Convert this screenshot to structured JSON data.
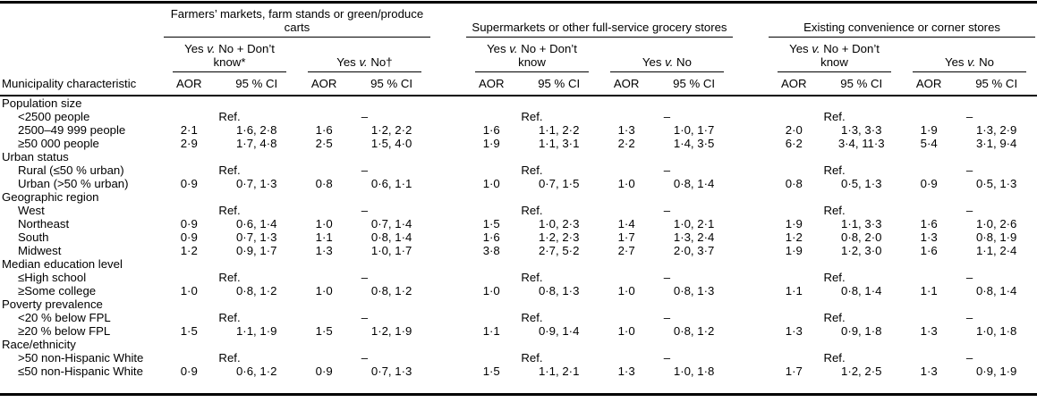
{
  "table": {
    "row_header_label": "Municipality characteristic",
    "aor_label": "AOR",
    "ci_label": "95 % CI",
    "ref_label": "Ref.",
    "no_estimate_marker": "–",
    "groups": [
      {
        "title": "Farmers’ markets, farm stands or green/produce carts",
        "comparisons": [
          {
            "pre": "Yes ",
            "v": "v.",
            "post": " No + Don’t know*"
          },
          {
            "pre": "Yes ",
            "v": "v.",
            "post": " No†"
          }
        ]
      },
      {
        "title": "Supermarkets or other full-service grocery stores",
        "comparisons": [
          {
            "pre": "Yes ",
            "v": "v.",
            "post": " No + Don’t know"
          },
          {
            "pre": "Yes ",
            "v": "v.",
            "post": " No"
          }
        ]
      },
      {
        "title": "Existing convenience or corner stores",
        "comparisons": [
          {
            "pre": "Yes ",
            "v": "v.",
            "post": " No + Don’t know"
          },
          {
            "pre": "Yes ",
            "v": "v.",
            "post": " No"
          }
        ]
      }
    ],
    "sections": [
      {
        "label": "Population size",
        "rows": [
          {
            "label": "<2500 people",
            "ref": true
          },
          {
            "label": "2500–49 999 people",
            "cells": [
              "2·1",
              "1·6, 2·8",
              "1·6",
              "1·2, 2·2",
              "1·6",
              "1·1, 2·2",
              "1·3",
              "1·0, 1·7",
              "2·0",
              "1·3, 3·3",
              "1·9",
              "1·3, 2·9"
            ]
          },
          {
            "label": "≥50 000 people",
            "cells": [
              "2·9",
              "1·7, 4·8",
              "2·5",
              "1·5, 4·0",
              "1·9",
              "1·1, 3·1",
              "2·2",
              "1·4, 3·5",
              "6·2",
              "3·4, 11·3",
              "5·4",
              "3·1, 9·4"
            ]
          }
        ]
      },
      {
        "label": "Urban status",
        "rows": [
          {
            "label": "Rural (≤50 % urban)",
            "ref": true
          },
          {
            "label": "Urban (>50 % urban)",
            "cells": [
              "0·9",
              "0·7, 1·3",
              "0·8",
              "0·6, 1·1",
              "1·0",
              "0·7, 1·5",
              "1·0",
              "0·8, 1·4",
              "0·8",
              "0·5, 1·3",
              "0·9",
              "0·5, 1·3"
            ]
          }
        ]
      },
      {
        "label": "Geographic region",
        "rows": [
          {
            "label": "West",
            "ref": true
          },
          {
            "label": "Northeast",
            "cells": [
              "0·9",
              "0·6, 1·4",
              "1·0",
              "0·7, 1·4",
              "1·5",
              "1·0, 2·3",
              "1·4",
              "1·0, 2·1",
              "1·9",
              "1·1, 3·3",
              "1·6",
              "1·0, 2·6"
            ]
          },
          {
            "label": "South",
            "cells": [
              "0·9",
              "0·7, 1·3",
              "1·1",
              "0·8, 1·4",
              "1·6",
              "1·2, 2·3",
              "1·7",
              "1·3, 2·4",
              "1·2",
              "0·8, 2·0",
              "1·3",
              "0·8, 1·9"
            ]
          },
          {
            "label": "Midwest",
            "cells": [
              "1·2",
              "0·9, 1·7",
              "1·3",
              "1·0, 1·7",
              "3·8",
              "2·7, 5·2",
              "2·7",
              "2·0, 3·7",
              "1·9",
              "1·2, 3·0",
              "1·6",
              "1·1, 2·4"
            ]
          }
        ]
      },
      {
        "label": "Median education level",
        "rows": [
          {
            "label": "≤High school",
            "ref": true
          },
          {
            "label": "≥Some college",
            "cells": [
              "1·0",
              "0·8, 1·2",
              "1·0",
              "0·8, 1·2",
              "1·0",
              "0·8, 1·3",
              "1·0",
              "0·8, 1·3",
              "1·1",
              "0·8, 1·4",
              "1·1",
              "0·8, 1·4"
            ]
          }
        ]
      },
      {
        "label": "Poverty prevalence",
        "rows": [
          {
            "label": "<20 % below FPL",
            "ref": true
          },
          {
            "label": "≥20 % below FPL",
            "cells": [
              "1·5",
              "1·1, 1·9",
              "1·5",
              "1·2, 1·9",
              "1·1",
              "0·9, 1·4",
              "1·0",
              "0·8, 1·2",
              "1·3",
              "0·9, 1·8",
              "1·3",
              "1·0, 1·8"
            ]
          }
        ]
      },
      {
        "label": "Race/ethnicity",
        "rows": [
          {
            "label": ">50 non-Hispanic White",
            "ref": true
          },
          {
            "label": "≤50 non-Hispanic White",
            "cells": [
              "0·9",
              "0·6, 1·2",
              "0·9",
              "0·7, 1·3",
              "1·5",
              "1·1, 2·1",
              "1·3",
              "1·0, 1·8",
              "1·7",
              "1·2, 2·5",
              "1·3",
              "0·9, 1·9"
            ]
          }
        ]
      }
    ]
  }
}
